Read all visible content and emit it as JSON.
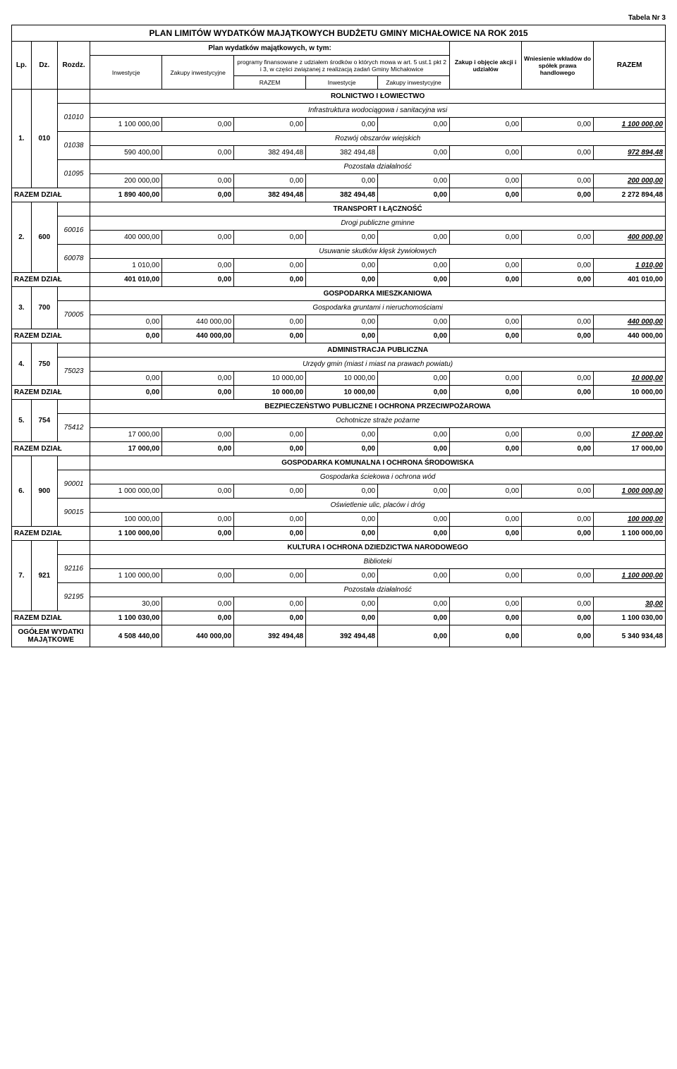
{
  "tabela_label": "Tabela Nr 3",
  "title": "PLAN LIMITÓW WYDATKÓW MAJĄTKOWYCH BUDŻETU GMINY MICHAŁOWICE NA ROK 2015",
  "header": {
    "lp": "Lp.",
    "dz": "Dz.",
    "rozdz": "Rozdz.",
    "inwestycje": "Inwestycje",
    "zakupy": "Zakupy inwestycyjne",
    "plan": "Plan wydatków majątkowych, w tym:",
    "programy": "programy finansowane z udziałem środków o których mowa w art. 5 ust.1 pkt 2 i 3, w części związanej z realizacją zadań Gminy Michałowice",
    "zakup": "Zakup i objęcie akcji i udziałów",
    "wniesienie": "Wniesienie wkładów do spółek prawa handlowego",
    "razem": "RAZEM",
    "razem2": "RAZEM",
    "inwestycje2": "Inwestycje",
    "zakupy2": "Zakupy inwestycyjne"
  },
  "labels": {
    "razem_dzial": "RAZEM DZIAŁ",
    "ogolem": "OGÓŁEM WYDATKI MAJĄTKOWE"
  },
  "sections": [
    {
      "lp": "1.",
      "dz": "010",
      "title": "ROLNICTWO I ŁOWIECTWO",
      "subs": [
        {
          "rozdz": "01010",
          "name": "Infrastruktura wodociągowa i sanitacyjna wsi",
          "row": [
            "1 100 000,00",
            "0,00",
            "0,00",
            "0,00",
            "0,00",
            "0,00",
            "0,00",
            "1 100 000,00"
          ],
          "ui": true
        },
        {
          "rozdz": "01038",
          "name": "Rozwój obszarów wiejskich",
          "row": [
            "590 400,00",
            "0,00",
            "382 494,48",
            "382 494,48",
            "0,00",
            "0,00",
            "0,00",
            "972 894,48"
          ],
          "ui": true
        },
        {
          "rozdz": "01095",
          "name": "Pozostała działalność",
          "row": [
            "200 000,00",
            "0,00",
            "0,00",
            "0,00",
            "0,00",
            "0,00",
            "0,00",
            "200 000,00"
          ],
          "ui": true
        }
      ],
      "total": [
        "1 890 400,00",
        "0,00",
        "382 494,48",
        "382 494,48",
        "0,00",
        "0,00",
        "0,00",
        "2 272 894,48"
      ]
    },
    {
      "lp": "2.",
      "dz": "600",
      "title": "TRANSPORT I ŁĄCZNOŚĆ",
      "subs": [
        {
          "rozdz": "60016",
          "name": "Drogi publiczne gminne",
          "row": [
            "400 000,00",
            "0,00",
            "0,00",
            "0,00",
            "0,00",
            "0,00",
            "0,00",
            "400 000,00"
          ],
          "ui": true
        },
        {
          "rozdz": "60078",
          "name": "Usuwanie skutków klęsk żywiołowych",
          "row": [
            "1 010,00",
            "0,00",
            "0,00",
            "0,00",
            "0,00",
            "0,00",
            "0,00",
            "1 010,00"
          ],
          "ui": true
        }
      ],
      "total": [
        "401 010,00",
        "0,00",
        "0,00",
        "0,00",
        "0,00",
        "0,00",
        "0,00",
        "401 010,00"
      ]
    },
    {
      "lp": "3.",
      "dz": "700",
      "title": "GOSPODARKA MIESZKANIOWA",
      "subs": [
        {
          "rozdz": "70005",
          "name": "Gospodarka gruntami i nieruchomościami",
          "row": [
            "0,00",
            "440 000,00",
            "0,00",
            "0,00",
            "0,00",
            "0,00",
            "0,00",
            "440 000,00"
          ],
          "ui": true
        }
      ],
      "total": [
        "0,00",
        "440 000,00",
        "0,00",
        "0,00",
        "0,00",
        "0,00",
        "0,00",
        "440 000,00"
      ]
    },
    {
      "lp": "4.",
      "dz": "750",
      "title": "ADMINISTRACJA PUBLICZNA",
      "subs": [
        {
          "rozdz": "75023",
          "name": "Urzędy gmin (miast i miast na prawach powiatu)",
          "row": [
            "0,00",
            "0,00",
            "10 000,00",
            "10 000,00",
            "0,00",
            "0,00",
            "0,00",
            "10 000,00"
          ],
          "ui": true
        }
      ],
      "total": [
        "0,00",
        "0,00",
        "10 000,00",
        "10 000,00",
        "0,00",
        "0,00",
        "0,00",
        "10 000,00"
      ]
    },
    {
      "lp": "5.",
      "dz": "754",
      "title": "BEZPIECZEŃSTWO PUBLICZNE I OCHRONA PRZECIWPOŻAROWA",
      "subs": [
        {
          "rozdz": "75412",
          "name": "Ochotnicze straże pożarne",
          "row": [
            "17 000,00",
            "0,00",
            "0,00",
            "0,00",
            "0,00",
            "0,00",
            "0,00",
            "17 000,00"
          ],
          "ui": true
        }
      ],
      "total": [
        "17 000,00",
        "0,00",
        "0,00",
        "0,00",
        "0,00",
        "0,00",
        "0,00",
        "17 000,00"
      ]
    },
    {
      "lp": "6.",
      "dz": "900",
      "title": "GOSPODARKA KOMUNALNA I OCHRONA ŚRODOWISKA",
      "subs": [
        {
          "rozdz": "90001",
          "name": "Gospodarka ściekowa i ochrona wód",
          "row": [
            "1 000 000,00",
            "0,00",
            "0,00",
            "0,00",
            "0,00",
            "0,00",
            "0,00",
            "1 000 000,00"
          ],
          "ui": true
        },
        {
          "rozdz": "90015",
          "name": "Oświetlenie ulic, placów i dróg",
          "row": [
            "100 000,00",
            "0,00",
            "0,00",
            "0,00",
            "0,00",
            "0,00",
            "0,00",
            "100 000,00"
          ],
          "ui": true
        }
      ],
      "total": [
        "1 100 000,00",
        "0,00",
        "0,00",
        "0,00",
        "0,00",
        "0,00",
        "0,00",
        "1 100 000,00"
      ]
    },
    {
      "lp": "7.",
      "dz": "921",
      "title": "KULTURA I OCHRONA DZIEDZICTWA NARODOWEGO",
      "subs": [
        {
          "rozdz": "92116",
          "name": "Biblioteki",
          "row": [
            "1 100 000,00",
            "0,00",
            "0,00",
            "0,00",
            "0,00",
            "0,00",
            "0,00",
            "1 100 000,00"
          ],
          "ui": true
        },
        {
          "rozdz": "92195",
          "name": "Pozostała działalność",
          "row": [
            "30,00",
            "0,00",
            "0,00",
            "0,00",
            "0,00",
            "0,00",
            "0,00",
            "30,00"
          ],
          "ui": true
        }
      ],
      "total": [
        "1 100 030,00",
        "0,00",
        "0,00",
        "0,00",
        "0,00",
        "0,00",
        "0,00",
        "1 100 030,00"
      ]
    }
  ],
  "grand": [
    "4 508 440,00",
    "440 000,00",
    "392 494,48",
    "392 494,48",
    "0,00",
    "0,00",
    "0,00",
    "5 340 934,48"
  ]
}
